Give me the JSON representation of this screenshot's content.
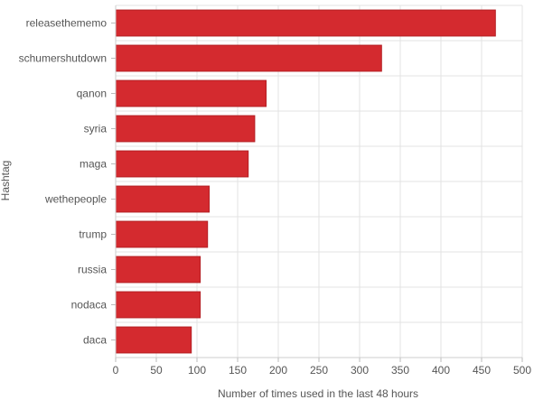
{
  "chart_data": {
    "type": "bar",
    "orientation": "horizontal",
    "categories": [
      "releasethememo",
      "schumershutdown",
      "qanon",
      "syria",
      "maga",
      "wethepeople",
      "trump",
      "russia",
      "nodaca",
      "daca"
    ],
    "values": [
      467,
      327,
      185,
      171,
      163,
      115,
      113,
      104,
      104,
      93
    ],
    "title": "",
    "xlabel": "Number of times used in the last 48 hours",
    "ylabel": "Hashtag",
    "xlim": [
      0,
      500
    ],
    "xticks": [
      "0",
      "50",
      "100",
      "150",
      "200",
      "250",
      "300",
      "350",
      "400",
      "450",
      "500"
    ],
    "grid": true,
    "legend": "none",
    "bar_color": "#d42a2f",
    "bar_edge_color": "#b31f24"
  }
}
